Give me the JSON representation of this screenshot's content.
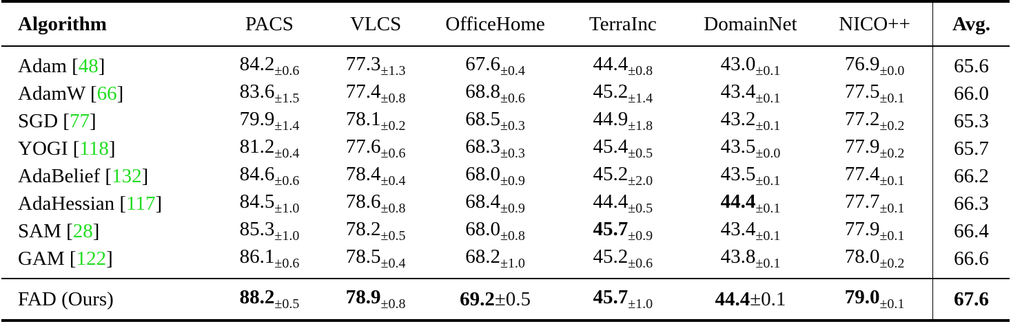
{
  "table": {
    "headers": [
      "Algorithm",
      "PACS",
      "VLCS",
      "OfficeHome",
      "TerraInc",
      "DomainNet",
      "NICO++",
      "Avg."
    ],
    "rows": [
      {
        "name": "Adam",
        "cite": "48",
        "cells": [
          [
            "84.2",
            "±0.6"
          ],
          [
            "77.3",
            "±1.3"
          ],
          [
            "67.6",
            "±0.4"
          ],
          [
            "44.4",
            "±0.8"
          ],
          [
            "43.0",
            "±0.1"
          ],
          [
            "76.9",
            "±0.0"
          ]
        ],
        "avg": "65.6"
      },
      {
        "name": "AdamW",
        "cite": "66",
        "cells": [
          [
            "83.6",
            "±1.5"
          ],
          [
            "77.4",
            "±0.8"
          ],
          [
            "68.8",
            "±0.6"
          ],
          [
            "45.2",
            "±1.4"
          ],
          [
            "43.4",
            "±0.1"
          ],
          [
            "77.5",
            "±0.1"
          ]
        ],
        "avg": "66.0"
      },
      {
        "name": "SGD",
        "cite": "77",
        "cells": [
          [
            "79.9",
            "±1.4"
          ],
          [
            "78.1",
            "±0.2"
          ],
          [
            "68.5",
            "±0.3"
          ],
          [
            "44.9",
            "±1.8"
          ],
          [
            "43.2",
            "±0.1"
          ],
          [
            "77.2",
            "±0.2"
          ]
        ],
        "avg": "65.3"
      },
      {
        "name": "YOGI",
        "cite": "118",
        "cells": [
          [
            "81.2",
            "±0.4"
          ],
          [
            "77.6",
            "±0.6"
          ],
          [
            "68.3",
            "±0.3"
          ],
          [
            "45.4",
            "±0.5"
          ],
          [
            "43.5",
            "±0.0"
          ],
          [
            "77.9",
            "±0.2"
          ]
        ],
        "avg": "65.7"
      },
      {
        "name": "AdaBelief",
        "cite": "132",
        "cells": [
          [
            "84.6",
            "±0.6"
          ],
          [
            "78.4",
            "±0.4"
          ],
          [
            "68.0",
            "±0.9"
          ],
          [
            "45.2",
            "±2.0"
          ],
          [
            "43.5",
            "±0.1"
          ],
          [
            "77.4",
            "±0.1"
          ]
        ],
        "avg": "66.2"
      },
      {
        "name": "AdaHessian",
        "cite": "117",
        "cells": [
          [
            "84.5",
            "±1.0"
          ],
          [
            "78.6",
            "±0.8"
          ],
          [
            "68.4",
            "±0.9"
          ],
          [
            "44.4",
            "±0.5"
          ],
          [
            "44.4",
            "±0.1"
          ],
          [
            "77.7",
            "±0.1"
          ]
        ],
        "avg": "66.3",
        "bold_cols": [
          4
        ]
      },
      {
        "name": "SAM",
        "cite": "28",
        "cells": [
          [
            "85.3",
            "±1.0"
          ],
          [
            "78.2",
            "±0.5"
          ],
          [
            "68.0",
            "±0.8"
          ],
          [
            "45.7",
            "±0.9"
          ],
          [
            "43.4",
            "±0.1"
          ],
          [
            "77.9",
            "±0.1"
          ]
        ],
        "avg": "66.4",
        "bold_cols": [
          3
        ]
      },
      {
        "name": "GAM",
        "cite": "122",
        "cells": [
          [
            "86.1",
            "±0.6"
          ],
          [
            "78.5",
            "±0.4"
          ],
          [
            "68.2",
            "±1.0"
          ],
          [
            "45.2",
            "±0.6"
          ],
          [
            "43.8",
            "±0.1"
          ],
          [
            "78.0",
            "±0.2"
          ]
        ],
        "avg": "66.6"
      }
    ],
    "ours": {
      "name": "FAD (Ours)",
      "cells": [
        [
          "88.2",
          "±0.5"
        ],
        [
          "78.9",
          "±0.8"
        ],
        [
          "69.2",
          "±0.5"
        ],
        [
          "45.7",
          "±1.0"
        ],
        [
          "44.4",
          "±0.1"
        ],
        [
          "79.0",
          "±0.1"
        ]
      ],
      "avg": "67.6"
    },
    "colors": {
      "citation": "#22dd22",
      "text": "#000000"
    }
  }
}
